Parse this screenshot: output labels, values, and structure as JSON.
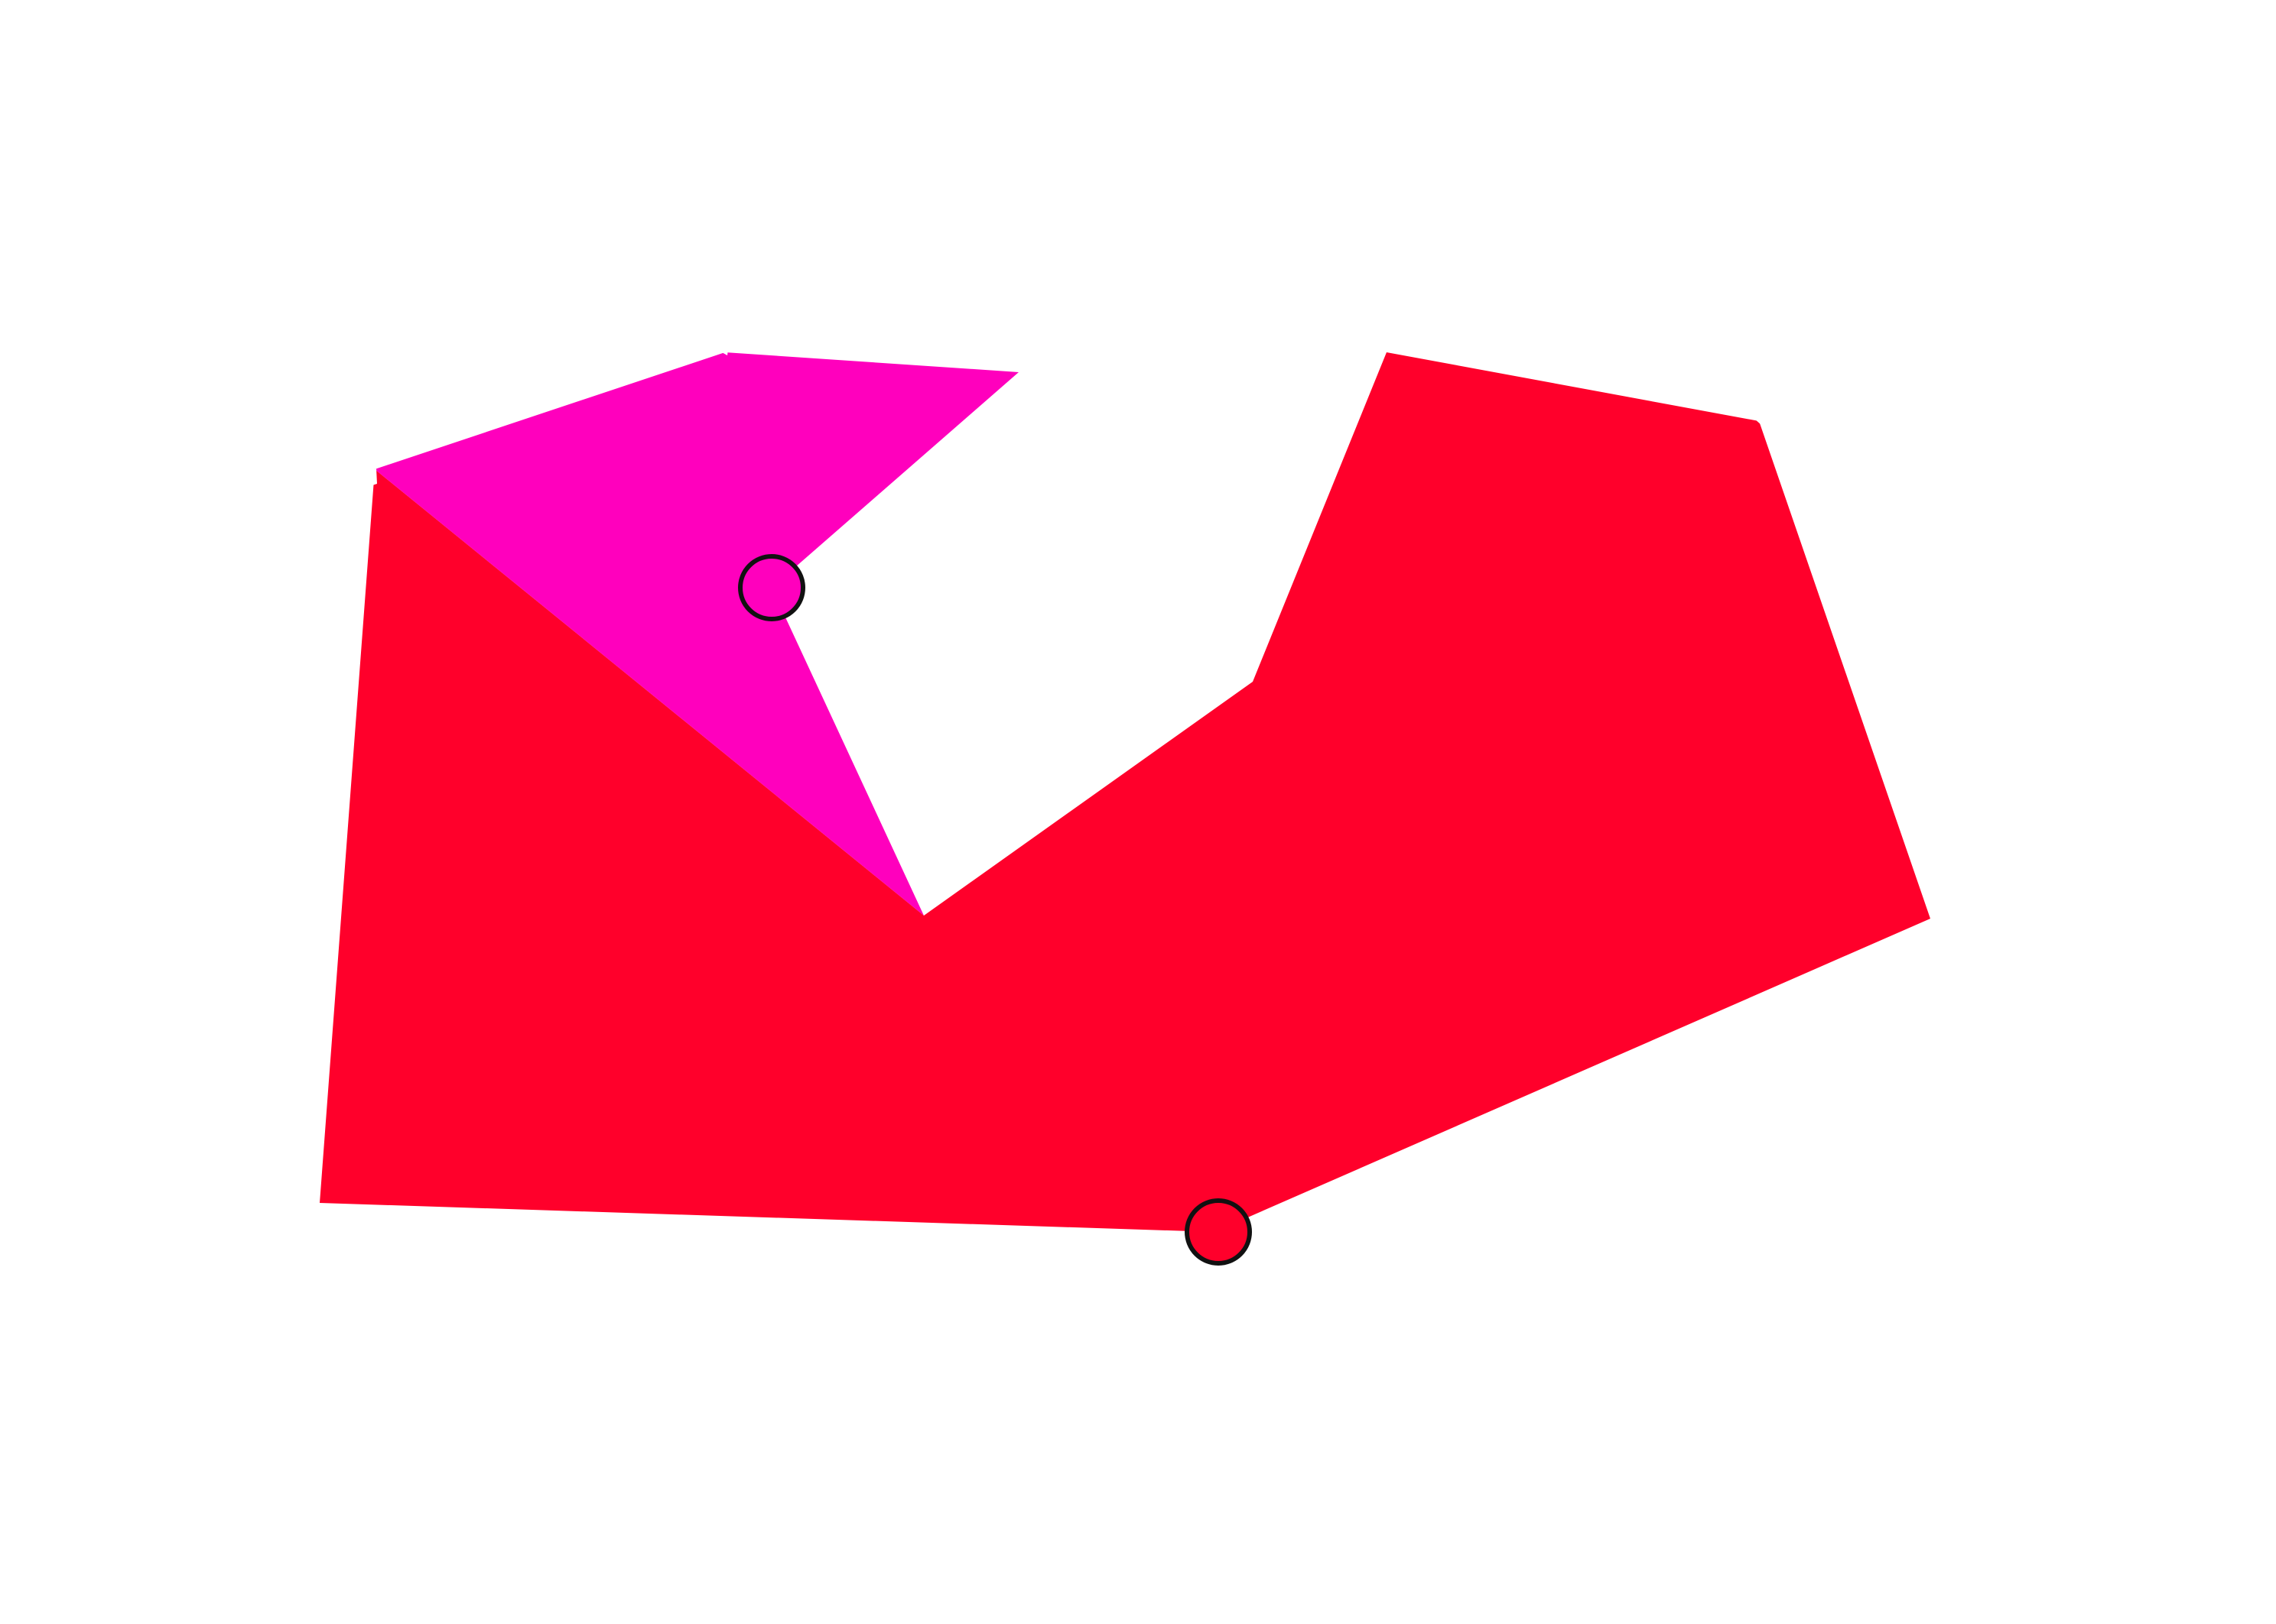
{
  "scene": {
    "background": "#ffffff",
    "shapes": [
      {
        "id": "red-polygon",
        "fill": "#ff002b"
      },
      {
        "id": "magenta-polygon",
        "fill": "#ff00bd"
      }
    ],
    "handles": [
      {
        "id": "magenta-handle",
        "fill": "#ff00bd",
        "stroke": "#111111"
      },
      {
        "id": "red-handle",
        "fill": "#ff002b",
        "stroke": "#111111"
      }
    ]
  }
}
